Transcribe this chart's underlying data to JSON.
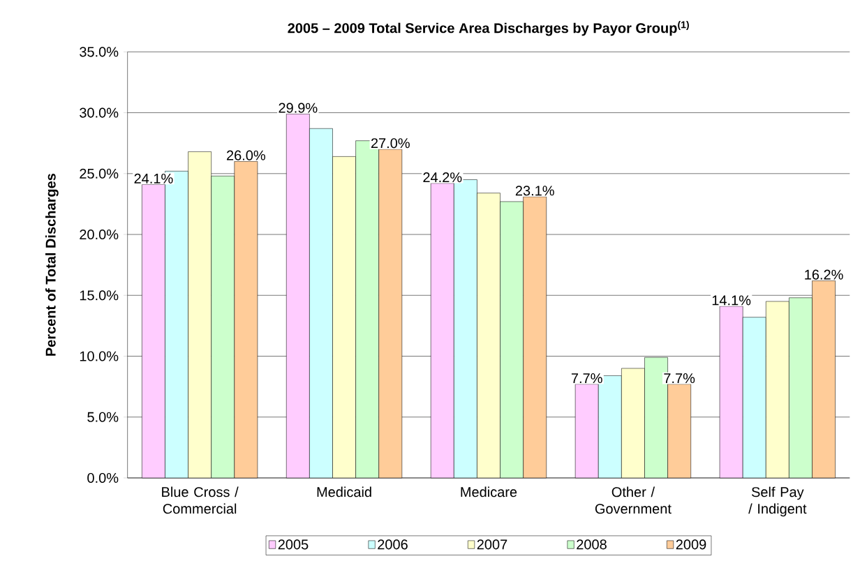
{
  "chart_data": {
    "type": "bar",
    "title": "2005 – 2009 Total Service Area Discharges by Payor Group$^{(1)}$",
    "ylabel": "Percent of Total Discharges",
    "categories": [
      "Blue Cross / Commercial",
      "Medicaid",
      "Medicare",
      "Other / Government",
      "Self Pay / Indigent"
    ],
    "series": [
      {
        "name": "2005",
        "color": "#ffccff",
        "values": [
          24.1,
          29.9,
          24.2,
          7.7,
          14.1
        ],
        "value_labels": [
          "24.1%",
          "29.9%",
          "24.2%",
          "7.7%",
          "14.1%"
        ]
      },
      {
        "name": "2006",
        "color": "#ccffff",
        "values": [
          25.2,
          28.7,
          24.5,
          8.4,
          13.2
        ]
      },
      {
        "name": "2007",
        "color": "#ffffcc",
        "values": [
          26.8,
          26.4,
          23.4,
          9.0,
          14.5
        ]
      },
      {
        "name": "2008",
        "color": "#ccffcc",
        "values": [
          24.8,
          27.7,
          22.7,
          9.9,
          14.8
        ]
      },
      {
        "name": "2009",
        "color": "#ffcc99",
        "values": [
          26.0,
          27.0,
          23.1,
          7.7,
          16.2
        ],
        "value_labels": [
          "26.0%",
          "27.0%",
          "23.1%",
          "7.7%",
          "16.2%"
        ]
      }
    ],
    "ylim": [
      0,
      35
    ],
    "yticks": [
      {
        "value": 0,
        "label": "0.0%"
      },
      {
        "value": 5,
        "label": "5.0%"
      },
      {
        "value": 10,
        "label": "10.0%"
      },
      {
        "value": 15,
        "label": "15.0%"
      },
      {
        "value": 20,
        "label": "20.0%"
      },
      {
        "value": 25,
        "label": "25.0%"
      },
      {
        "value": 30,
        "label": "30.0%"
      },
      {
        "value": 35,
        "label": "35.0%"
      }
    ],
    "grid": "y",
    "legend": "bottom"
  }
}
